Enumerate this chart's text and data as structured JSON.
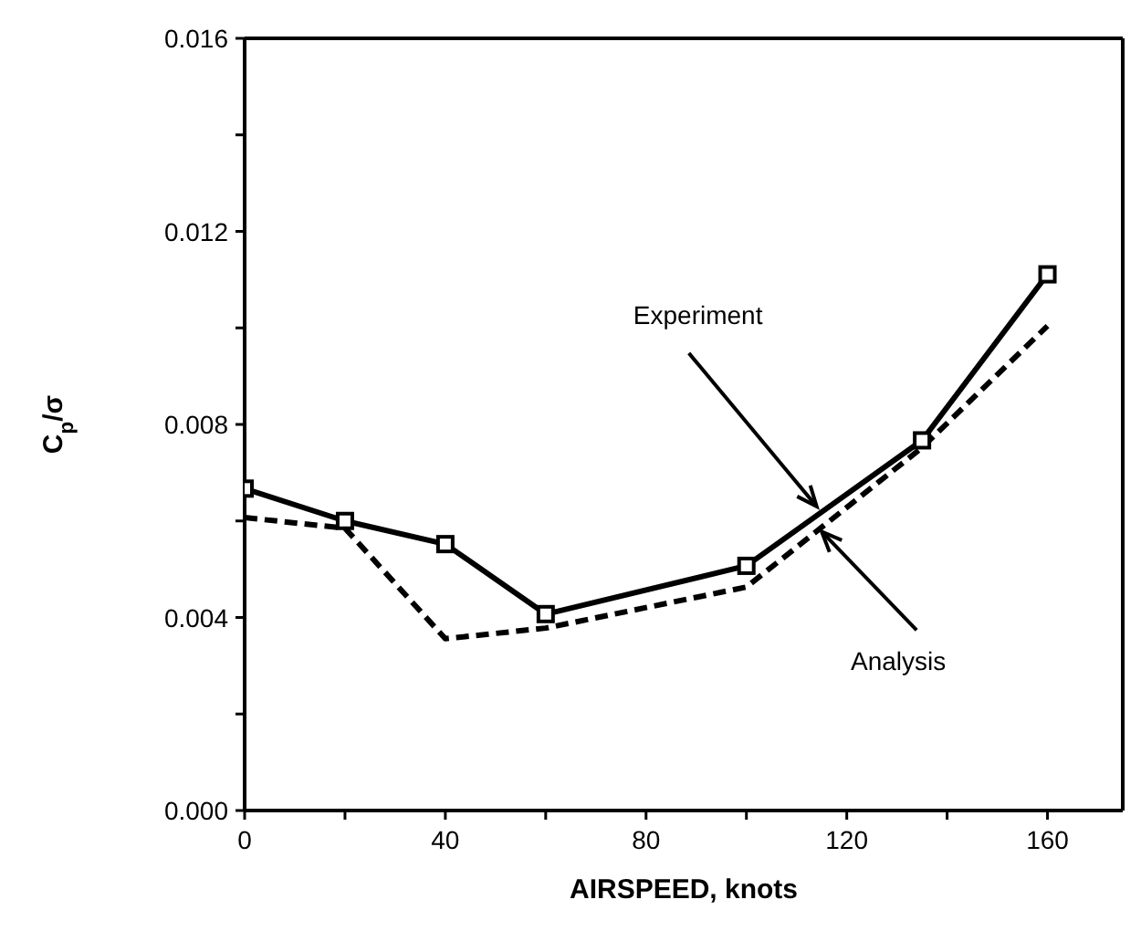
{
  "chart_data": {
    "type": "line",
    "xlabel": "AIRSPEED,  knots",
    "ylabel": "C$_{p}$/σ",
    "x": [
      0,
      20,
      40,
      60,
      100,
      135,
      160
    ],
    "series": [
      {
        "type": "line",
        "color": "#000000",
        "marker": "square",
        "line_style": "solid",
        "values": [
          0.00667,
          0.006,
          0.00552,
          0.00407,
          0.00507,
          0.00767,
          0.01111
        ]
      },
      {
        "type": "line",
        "color": "#000000",
        "marker": "none",
        "line_style": "dashed",
        "values": [
          0.00607,
          0.00585,
          0.00356,
          0.00378,
          0.00463,
          0.00752,
          0.01004
        ]
      }
    ],
    "xlim": [
      0,
      175
    ],
    "xticks": [
      {
        "value": 0,
        "label": "0"
      },
      {
        "value": 20,
        "label": null
      },
      40,
      {
        "value": 60,
        "label": null
      },
      80,
      {
        "value": 100,
        "label": null
      },
      120,
      {
        "value": 140,
        "label": null
      },
      160
    ],
    "ylim": [
      0,
      0.016
    ],
    "yticks": [
      {
        "value": 0,
        "label": "0.000"
      },
      {
        "value": 0.002,
        "label": null
      },
      {
        "value": 0.004,
        "label": "0.004"
      },
      {
        "value": 0.006,
        "label": null
      },
      {
        "value": 0.008,
        "label": "0.008"
      },
      {
        "value": 0.01,
        "label": null
      },
      {
        "value": 0.012,
        "label": "0.012"
      },
      {
        "value": 0.014,
        "label": null
      },
      {
        "value": 0.016,
        "label": "0.016"
      }
    ],
    "annotations": [
      {
        "text": "Experiment",
        "x": 114,
        "y": 0.0063
      },
      {
        "text": "Analysis",
        "x": 115,
        "y": 0.00578
      }
    ],
    "grid": false
  }
}
